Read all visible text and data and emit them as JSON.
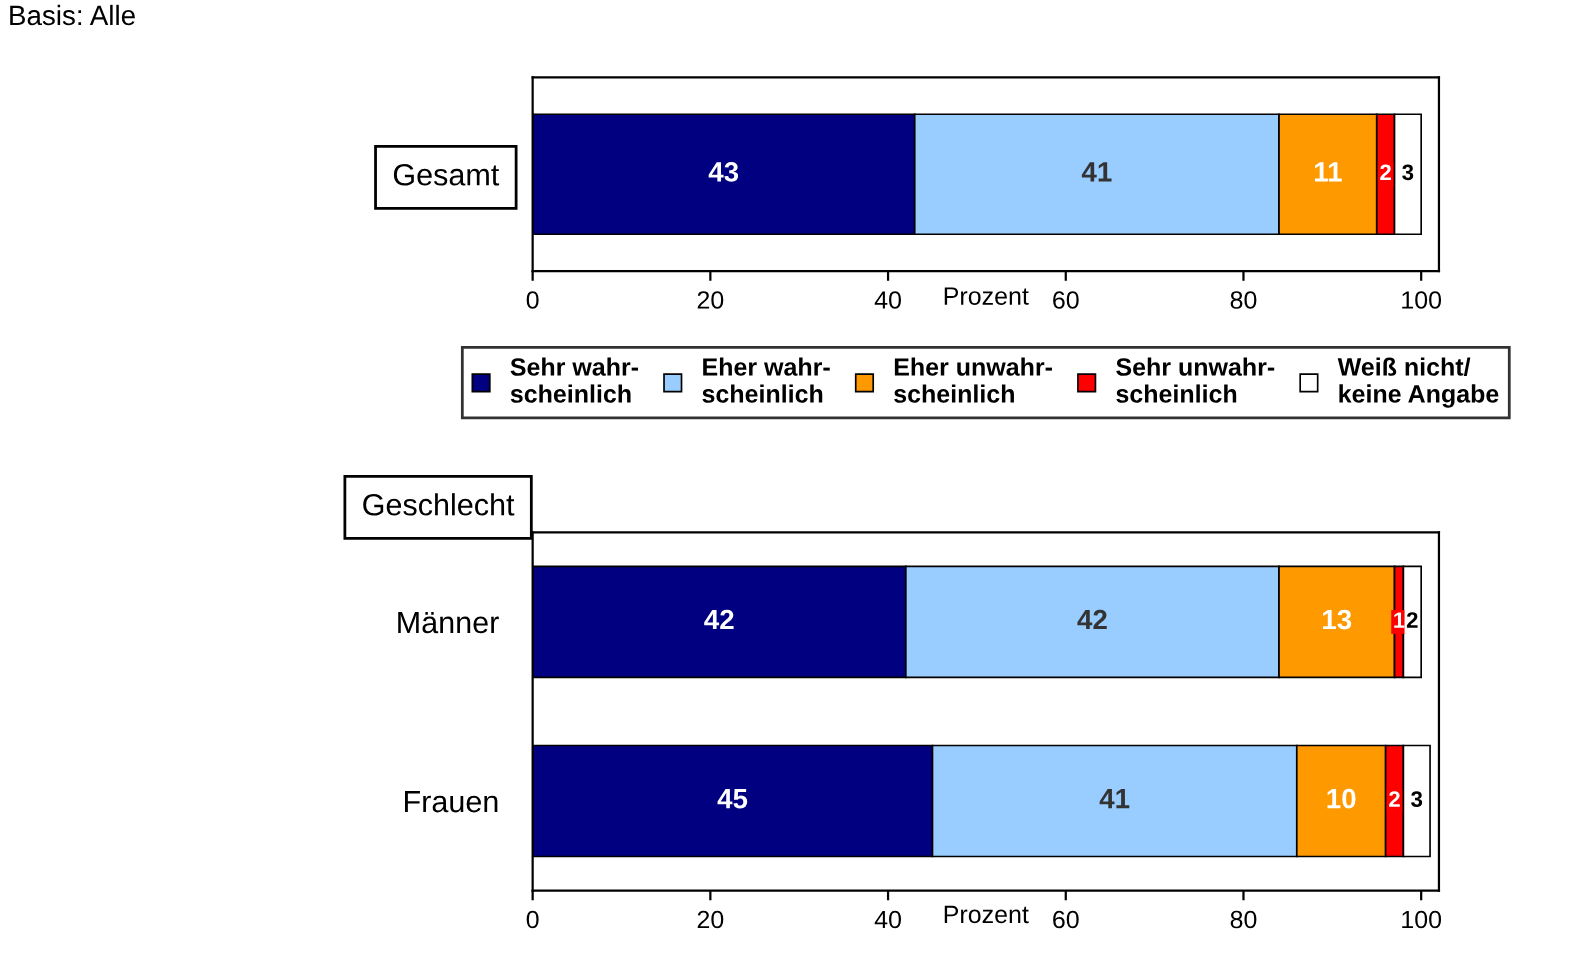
{
  "chart_data": [
    {
      "type": "bar",
      "orientation": "horizontal",
      "stacked": true,
      "categories": [
        "Gesamt"
      ],
      "xlabel": "Prozent",
      "xlim": [
        0,
        102
      ],
      "xticks": [
        0,
        20,
        40,
        60,
        80,
        100
      ],
      "data_labels": true,
      "legend": "bottom",
      "grid": false,
      "annotations": [
        "Basis: Alle"
      ],
      "series": [
        {
          "name": "Sehr wahr-\nscheinlich",
          "color": "#000080",
          "values": [
            43
          ]
        },
        {
          "name": "Eher wahr-\nscheinlich",
          "color": "#99ccff",
          "values": [
            41
          ]
        },
        {
          "name": "Eher unwahr-\nscheinlich",
          "color": "#ff9900",
          "values": [
            11
          ]
        },
        {
          "name": "Sehr unwahr-\nscheinlich",
          "color": "#ff0000",
          "values": [
            2
          ]
        },
        {
          "name": "Weiß nicht/\nkeine Angabe",
          "color": "#ffffff",
          "values": [
            3
          ]
        }
      ]
    },
    {
      "type": "bar",
      "orientation": "horizontal",
      "stacked": true,
      "ylabel": "Geschlecht",
      "categories": [
        "Männer",
        "Frauen"
      ],
      "xlabel": "Prozent",
      "xlim": [
        0,
        102
      ],
      "xticks": [
        0,
        20,
        40,
        60,
        80,
        100
      ],
      "data_labels": true,
      "grid": false,
      "series": [
        {
          "color": "#000080",
          "values": [
            42,
            45
          ]
        },
        {
          "color": "#99ccff",
          "values": [
            42,
            41
          ]
        },
        {
          "color": "#ff9900",
          "values": [
            13,
            10
          ]
        },
        {
          "color": "#ff0000",
          "values": [
            1,
            2
          ]
        },
        {
          "color": "#ffffff",
          "values": [
            2,
            3
          ]
        }
      ]
    }
  ]
}
